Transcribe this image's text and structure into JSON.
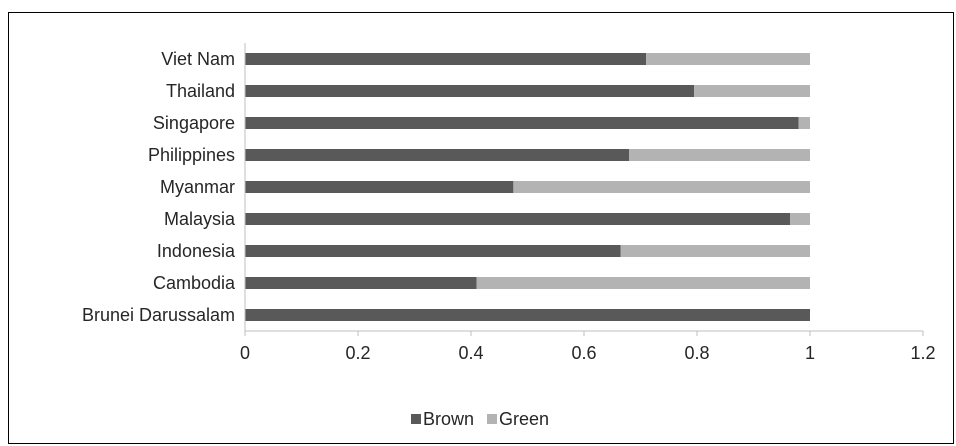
{
  "colors": {
    "brown": "#595959",
    "green": "#b3b3b3",
    "axis": "#bfbfbf",
    "text": "#262626",
    "border": "#000000"
  },
  "chart_data": {
    "type": "bar",
    "orientation": "horizontal",
    "stacked": true,
    "title": "",
    "xlabel": "",
    "ylabel": "",
    "categories": [
      "Brunei Darussalam",
      "Cambodia",
      "Indonesia",
      "Malaysia",
      "Myanmar",
      "Philippines",
      "Singapore",
      "Thailand",
      "Viet Nam"
    ],
    "series": [
      {
        "name": "Brown",
        "color": "#595959",
        "values": [
          1.0,
          0.41,
          0.665,
          0.965,
          0.475,
          0.68,
          0.98,
          0.795,
          0.71
        ]
      },
      {
        "name": "Green",
        "color": "#b3b3b3",
        "values": [
          0.0,
          0.59,
          0.335,
          0.035,
          0.525,
          0.32,
          0.02,
          0.205,
          0.29
        ]
      }
    ],
    "xlim": [
      0,
      1.2
    ],
    "x_ticks": [
      "0",
      "0.2",
      "0.4",
      "0.6",
      "0.8",
      "1",
      "1.2"
    ],
    "grid": false,
    "legend_position": "bottom-center"
  }
}
